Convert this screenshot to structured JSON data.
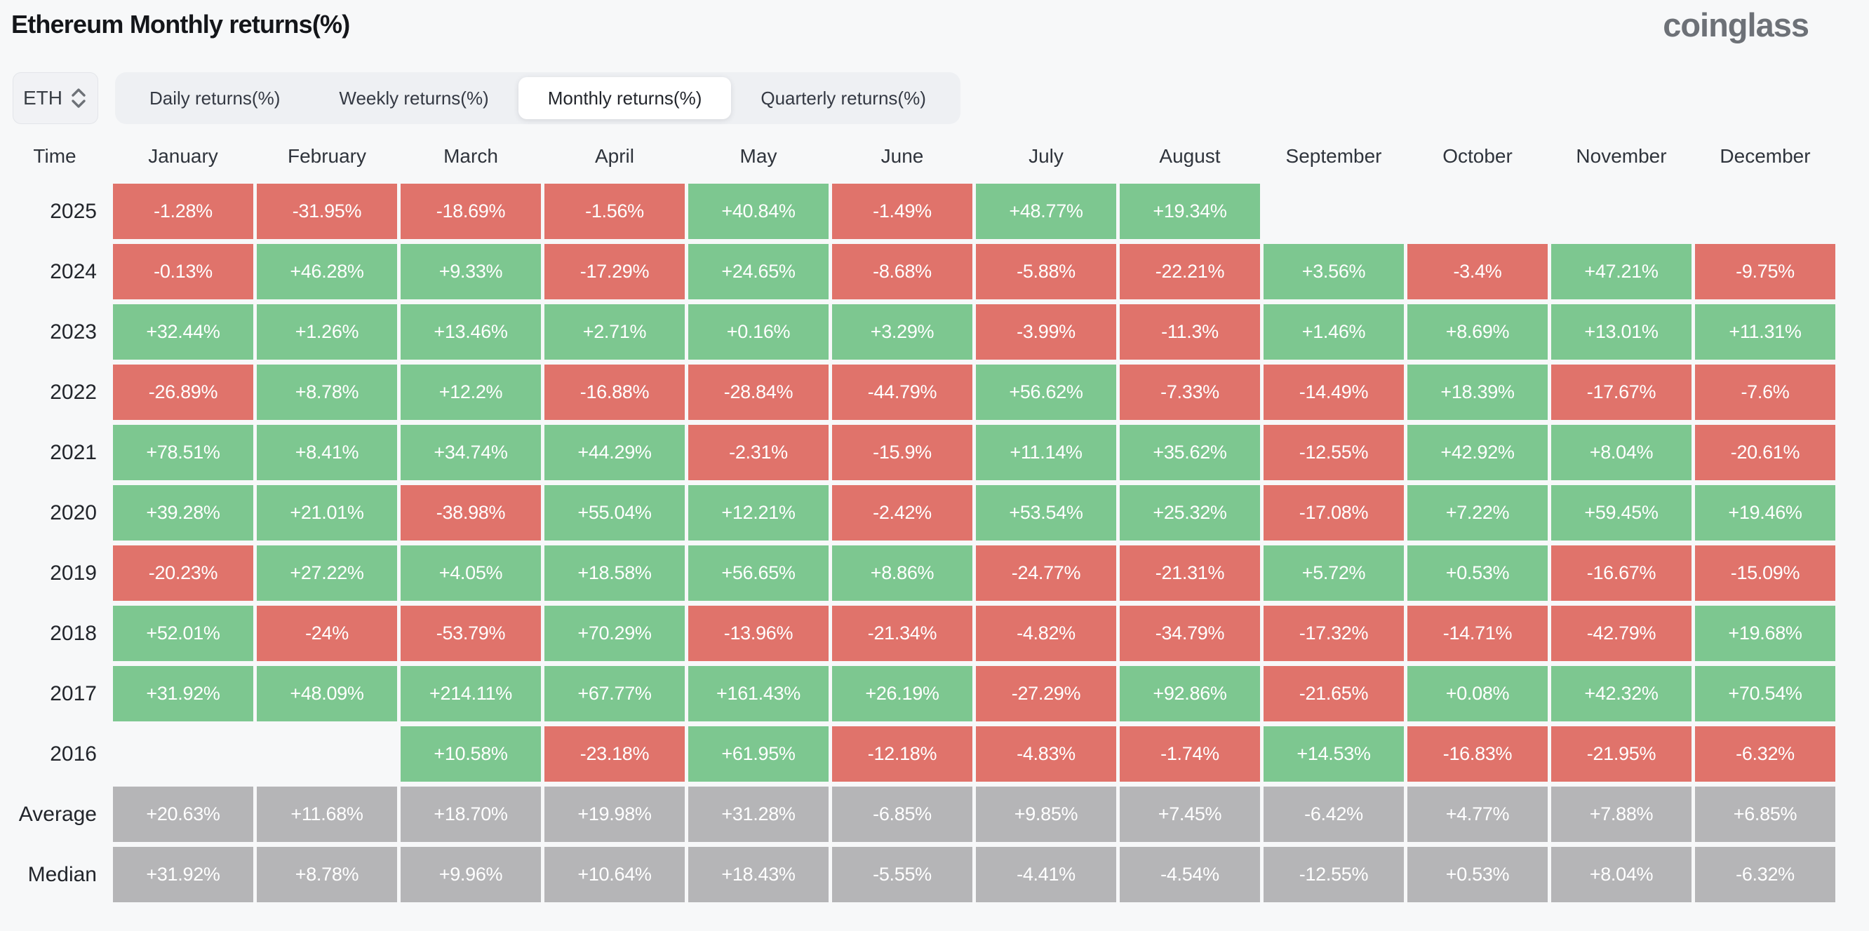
{
  "header": {
    "title": "Ethereum Monthly returns(%)",
    "logo": "coinglass"
  },
  "controls": {
    "symbol": "ETH",
    "tabs": [
      {
        "label": "Daily returns(%)",
        "active": false
      },
      {
        "label": "Weekly returns(%)",
        "active": false
      },
      {
        "label": "Monthly returns(%)",
        "active": true
      },
      {
        "label": "Quarterly returns(%)",
        "active": false
      }
    ]
  },
  "colors": {
    "green": "#7dc790",
    "red": "#e0736b",
    "gray": "#b5b5b7",
    "page_bg": "#f7f8f9"
  },
  "chart_data": {
    "type": "heatmap",
    "title": "Ethereum Monthly returns(%)",
    "legend_position": "none",
    "columns": [
      "Time",
      "January",
      "February",
      "March",
      "April",
      "May",
      "June",
      "July",
      "August",
      "September",
      "October",
      "November",
      "December"
    ],
    "rows": [
      {
        "label": "2025",
        "values": [
          "-1.28%",
          "-31.95%",
          "-18.69%",
          "-1.56%",
          "+40.84%",
          "-1.49%",
          "+48.77%",
          "+19.34%",
          "",
          "",
          "",
          ""
        ],
        "colors": [
          "red",
          "red",
          "red",
          "red",
          "green",
          "red",
          "green",
          "green",
          "",
          "",
          "",
          ""
        ]
      },
      {
        "label": "2024",
        "values": [
          "-0.13%",
          "+46.28%",
          "+9.33%",
          "-17.29%",
          "+24.65%",
          "-8.68%",
          "-5.88%",
          "-22.21%",
          "+3.56%",
          "-3.4%",
          "+47.21%",
          "-9.75%"
        ],
        "colors": [
          "red",
          "green",
          "green",
          "red",
          "green",
          "red",
          "red",
          "red",
          "green",
          "red",
          "green",
          "red"
        ]
      },
      {
        "label": "2023",
        "values": [
          "+32.44%",
          "+1.26%",
          "+13.46%",
          "+2.71%",
          "+0.16%",
          "+3.29%",
          "-3.99%",
          "-11.3%",
          "+1.46%",
          "+8.69%",
          "+13.01%",
          "+11.31%"
        ],
        "colors": [
          "green",
          "green",
          "green",
          "green",
          "green",
          "green",
          "red",
          "red",
          "green",
          "green",
          "green",
          "green"
        ]
      },
      {
        "label": "2022",
        "values": [
          "-26.89%",
          "+8.78%",
          "+12.2%",
          "-16.88%",
          "-28.84%",
          "-44.79%",
          "+56.62%",
          "-7.33%",
          "-14.49%",
          "+18.39%",
          "-17.67%",
          "-7.6%"
        ],
        "colors": [
          "red",
          "green",
          "green",
          "red",
          "red",
          "red",
          "green",
          "red",
          "red",
          "green",
          "red",
          "red"
        ]
      },
      {
        "label": "2021",
        "values": [
          "+78.51%",
          "+8.41%",
          "+34.74%",
          "+44.29%",
          "-2.31%",
          "-15.9%",
          "+11.14%",
          "+35.62%",
          "-12.55%",
          "+42.92%",
          "+8.04%",
          "-20.61%"
        ],
        "colors": [
          "green",
          "green",
          "green",
          "green",
          "red",
          "red",
          "green",
          "green",
          "red",
          "green",
          "green",
          "red"
        ]
      },
      {
        "label": "2020",
        "values": [
          "+39.28%",
          "+21.01%",
          "-38.98%",
          "+55.04%",
          "+12.21%",
          "-2.42%",
          "+53.54%",
          "+25.32%",
          "-17.08%",
          "+7.22%",
          "+59.45%",
          "+19.46%"
        ],
        "colors": [
          "green",
          "green",
          "red",
          "green",
          "green",
          "red",
          "green",
          "green",
          "red",
          "green",
          "green",
          "green"
        ]
      },
      {
        "label": "2019",
        "values": [
          "-20.23%",
          "+27.22%",
          "+4.05%",
          "+18.58%",
          "+56.65%",
          "+8.86%",
          "-24.77%",
          "-21.31%",
          "+5.72%",
          "+0.53%",
          "-16.67%",
          "-15.09%"
        ],
        "colors": [
          "red",
          "green",
          "green",
          "green",
          "green",
          "green",
          "red",
          "red",
          "green",
          "green",
          "red",
          "red"
        ]
      },
      {
        "label": "2018",
        "values": [
          "+52.01%",
          "-24%",
          "-53.79%",
          "+70.29%",
          "-13.96%",
          "-21.34%",
          "-4.82%",
          "-34.79%",
          "-17.32%",
          "-14.71%",
          "-42.79%",
          "+19.68%"
        ],
        "colors": [
          "green",
          "red",
          "red",
          "green",
          "red",
          "red",
          "red",
          "red",
          "red",
          "red",
          "red",
          "green"
        ]
      },
      {
        "label": "2017",
        "values": [
          "+31.92%",
          "+48.09%",
          "+214.11%",
          "+67.77%",
          "+161.43%",
          "+26.19%",
          "-27.29%",
          "+92.86%",
          "-21.65%",
          "+0.08%",
          "+42.32%",
          "+70.54%"
        ],
        "colors": [
          "green",
          "green",
          "green",
          "green",
          "green",
          "green",
          "red",
          "green",
          "red",
          "green",
          "green",
          "green"
        ]
      },
      {
        "label": "2016",
        "values": [
          "",
          "",
          "+10.58%",
          "-23.18%",
          "+61.95%",
          "-12.18%",
          "-4.83%",
          "-1.74%",
          "+14.53%",
          "-16.83%",
          "-21.95%",
          "-6.32%"
        ],
        "colors": [
          "",
          "",
          "green",
          "red",
          "green",
          "red",
          "red",
          "red",
          "green",
          "red",
          "red",
          "red"
        ]
      },
      {
        "label": "Average",
        "values": [
          "+20.63%",
          "+11.68%",
          "+18.70%",
          "+19.98%",
          "+31.28%",
          "-6.85%",
          "+9.85%",
          "+7.45%",
          "-6.42%",
          "+4.77%",
          "+7.88%",
          "+6.85%"
        ],
        "colors": [
          "gray",
          "gray",
          "gray",
          "gray",
          "gray",
          "gray",
          "gray",
          "gray",
          "gray",
          "gray",
          "gray",
          "gray"
        ]
      },
      {
        "label": "Median",
        "values": [
          "+31.92%",
          "+8.78%",
          "+9.96%",
          "+10.64%",
          "+18.43%",
          "-5.55%",
          "-4.41%",
          "-4.54%",
          "-12.55%",
          "+0.53%",
          "+8.04%",
          "-6.32%"
        ],
        "colors": [
          "gray",
          "gray",
          "gray",
          "gray",
          "gray",
          "gray",
          "gray",
          "gray",
          "gray",
          "gray",
          "gray",
          "gray"
        ]
      }
    ]
  }
}
